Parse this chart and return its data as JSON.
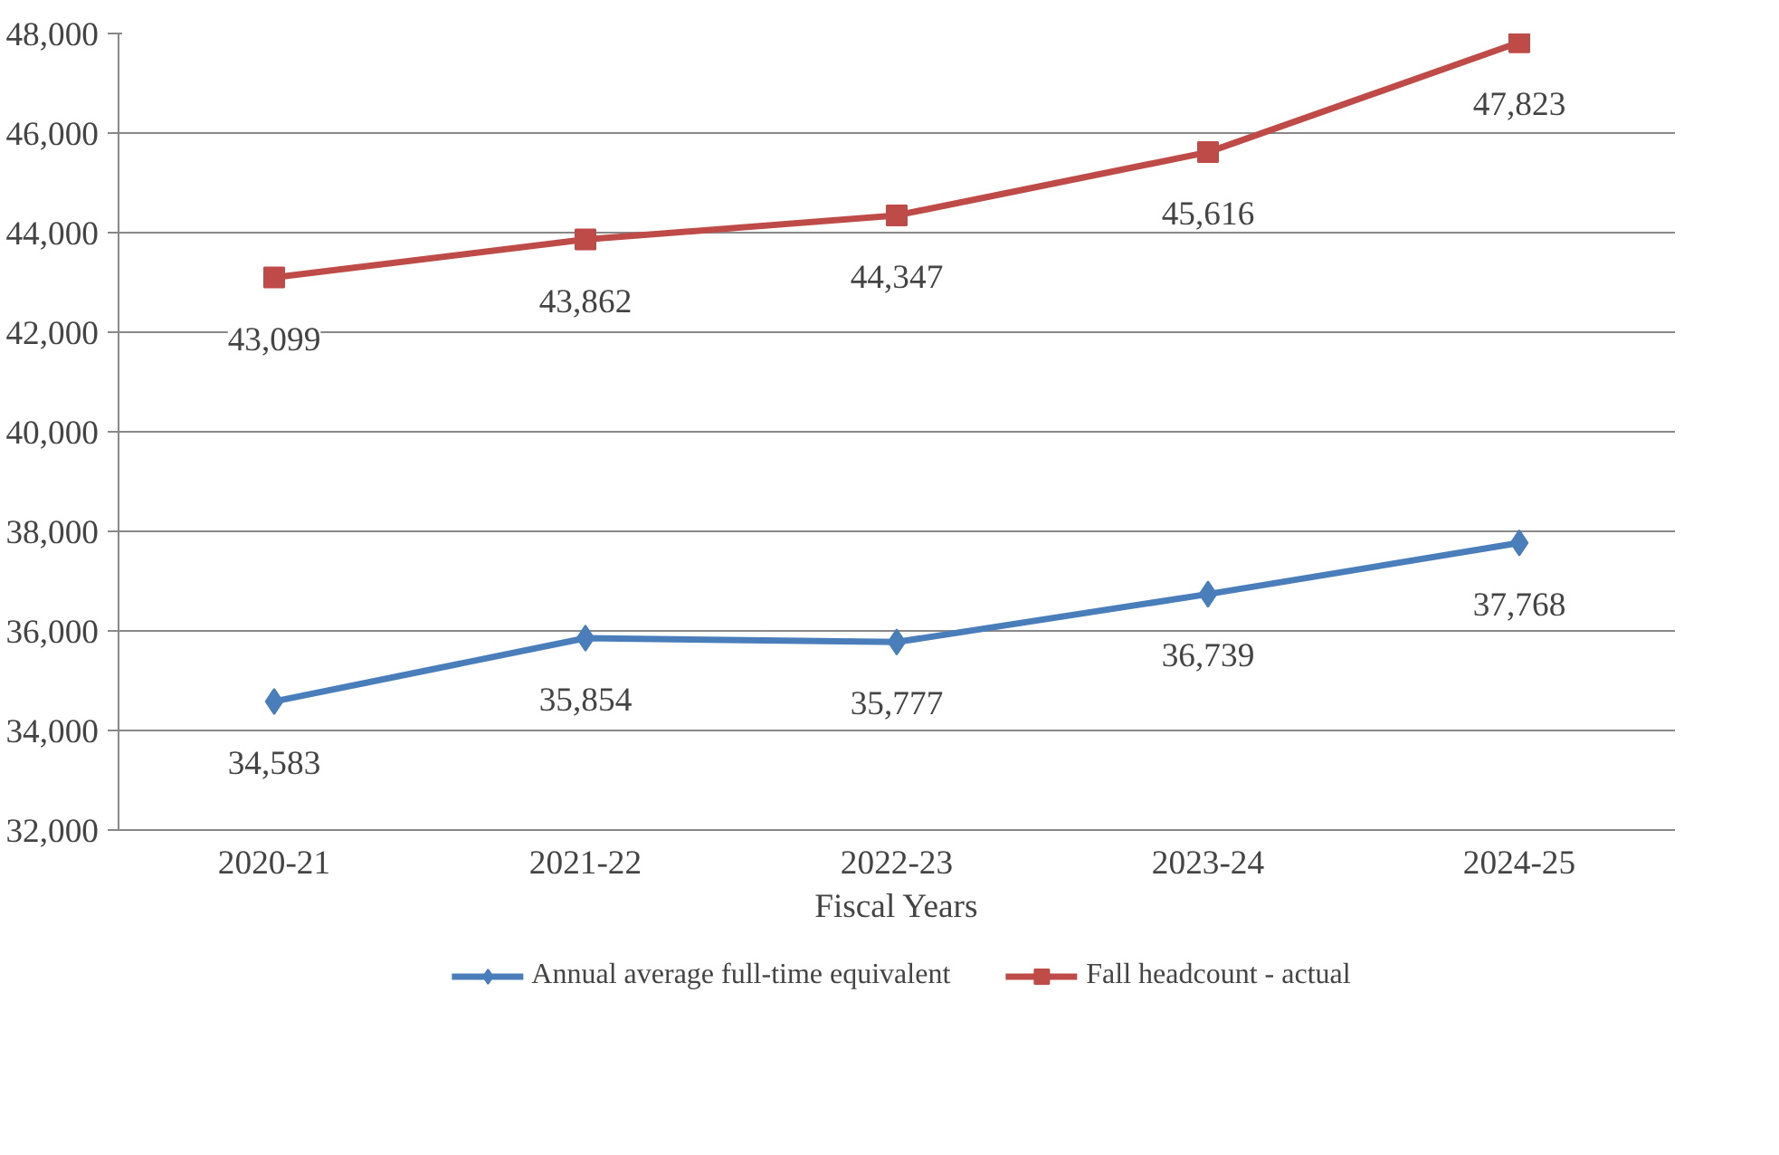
{
  "chart_data": {
    "type": "line",
    "xlabel": "Fiscal Years",
    "categories": [
      "2020-21",
      "2021-22",
      "2022-23",
      "2023-24",
      "2024-25"
    ],
    "series": [
      {
        "name": "Annual average full-time equivalent",
        "color": "#4a7ebb",
        "marker": "diamond",
        "values": [
          34583,
          35854,
          35777,
          36739,
          37768
        ],
        "value_labels": [
          "34,583",
          "35,854",
          "35,777",
          "36,739",
          "37,768"
        ]
      },
      {
        "name": "Fall headcount - actual",
        "color": "#be4b48",
        "marker": "square",
        "values": [
          43099,
          43862,
          44347,
          45616,
          47823
        ],
        "value_labels": [
          "43,099",
          "43,862",
          "44,347",
          "45,616",
          "47,823"
        ]
      }
    ],
    "ylim": [
      32000,
      48000
    ],
    "yticks": [
      {
        "value": 32000,
        "label": "32,000"
      },
      {
        "value": 34000,
        "label": "34,000"
      },
      {
        "value": 36000,
        "label": "36,000"
      },
      {
        "value": 38000,
        "label": "38,000"
      },
      {
        "value": 40000,
        "label": "40,000"
      },
      {
        "value": 42000,
        "label": "42,000"
      },
      {
        "value": 44000,
        "label": "44,000"
      },
      {
        "value": 46000,
        "label": "46,000"
      },
      {
        "value": 48000,
        "label": "48,000"
      }
    ],
    "grid": "y",
    "legend": "bottom"
  }
}
